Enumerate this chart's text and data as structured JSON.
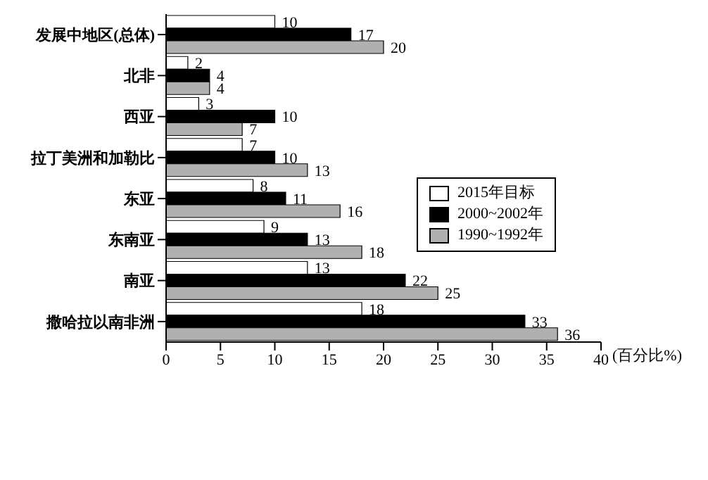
{
  "chart_data": {
    "type": "bar",
    "orientation": "horizontal",
    "categories": [
      "发展中地区(总体)",
      "北非",
      "西亚",
      "拉丁美洲和加勒比",
      "东亚",
      "东南亚",
      "南亚",
      "撒哈拉以南非洲"
    ],
    "series": [
      {
        "name": "2015年目标",
        "color": "#ffffff",
        "values": [
          10,
          2,
          3,
          7,
          8,
          9,
          13,
          18
        ]
      },
      {
        "name": "2000~2002年",
        "color": "#000000",
        "values": [
          17,
          4,
          10,
          10,
          11,
          13,
          22,
          33
        ]
      },
      {
        "name": "1990~1992年",
        "color": "#b0b0b0",
        "values": [
          20,
          4,
          7,
          13,
          16,
          18,
          25,
          36
        ]
      }
    ],
    "xlabel": "(百分比%)",
    "xlim": [
      0,
      40
    ],
    "xticks": [
      0,
      5,
      10,
      15,
      20,
      25,
      30,
      35,
      40
    ],
    "data_labels": true,
    "legend": "right",
    "grid": false
  }
}
